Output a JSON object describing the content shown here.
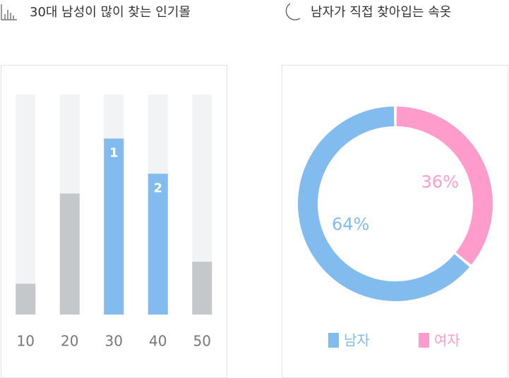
{
  "chart_data": [
    {
      "type": "bar",
      "title": "30대 남성이 많이 찾는 인기몰",
      "categories": [
        "10",
        "20",
        "30",
        "40",
        "50"
      ],
      "values": [
        14,
        55,
        80,
        64,
        24
      ],
      "ranks": [
        null,
        null,
        "1",
        "2",
        null
      ],
      "colors": [
        "#c5c8cb",
        "#c5c8cb",
        "#82bbee",
        "#82bbee",
        "#c5c8cb"
      ],
      "track_color": "#f2f3f5",
      "ylim": [
        0,
        100
      ]
    },
    {
      "type": "donut",
      "title": "남자가 직접 찾아입는 속옷",
      "categories": [
        "남자",
        "여자"
      ],
      "values": [
        64,
        36
      ],
      "value_labels": [
        "64%",
        "36%"
      ],
      "colors": [
        "#82bbee",
        "#ff9ccc"
      ]
    }
  ]
}
